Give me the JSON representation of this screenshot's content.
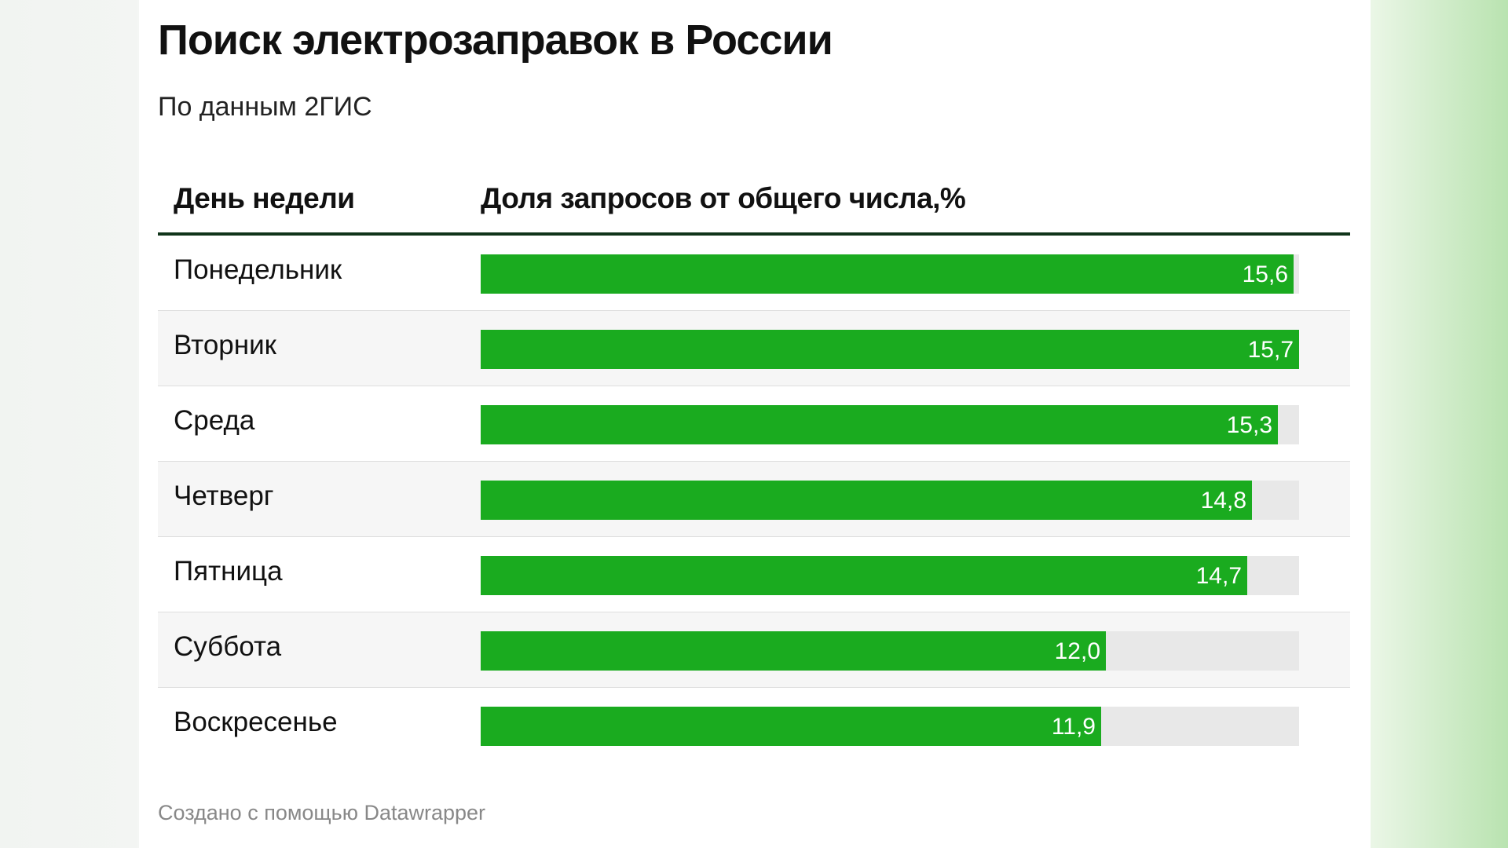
{
  "title": "Поиск электрозаправок в России",
  "subtitle": "По данным 2ГИС",
  "table": {
    "col_day": "День недели",
    "col_share": "Доля запросов от общего числа,%"
  },
  "footer": "Создано с помощью Datawrapper",
  "colors": {
    "bar": "#1aab1f",
    "track": "#e8e8e8",
    "header_rule": "#10341a"
  },
  "chart_data": {
    "type": "bar",
    "orientation": "horizontal",
    "categories": [
      "Понедельник",
      "Вторник",
      "Среда",
      "Четверг",
      "Пятница",
      "Суббота",
      "Воскресенье"
    ],
    "values": [
      15.6,
      15.7,
      15.3,
      14.8,
      14.7,
      12.0,
      11.9
    ],
    "value_labels": [
      "15,6",
      "15,7",
      "15,3",
      "14,8",
      "14,7",
      "12,0",
      "11,9"
    ],
    "xlim": [
      0,
      15.7
    ]
  }
}
